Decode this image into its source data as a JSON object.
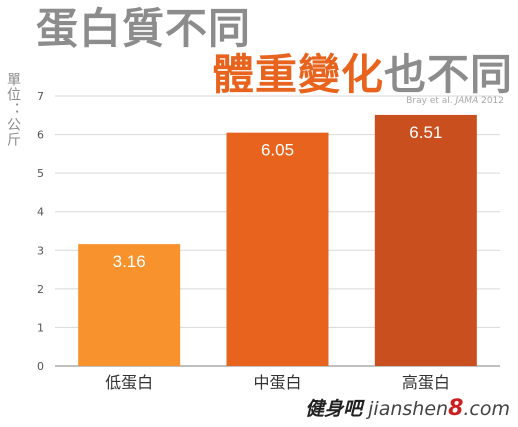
{
  "title": {
    "line1": "蛋白質不同",
    "line2_highlight": "體重變化",
    "line2_rest": "也不同"
  },
  "unit_label": "單位：公斤",
  "source": {
    "prefix": "Bray et al. ",
    "journal": "JAMA",
    "year": " 2012"
  },
  "watermark": {
    "logo": "健身吧",
    "domain_a": "jianshen",
    "domain_num": "8",
    "domain_b": ".com"
  },
  "colors": {
    "bar1": "#f7922d",
    "bar2": "#e8641e",
    "bar3": "#c9501e",
    "title_grey": "#8c8c8c",
    "title_orange": "#e8641e"
  },
  "chart_data": {
    "type": "bar",
    "categories": [
      "低蛋白",
      "中蛋白",
      "高蛋白"
    ],
    "values": [
      3.16,
      6.05,
      6.51
    ],
    "value_labels": [
      "3.16",
      "6.05",
      "6.51"
    ],
    "ylim": [
      0,
      7
    ],
    "yticks": [
      0,
      1,
      2,
      3,
      4,
      5,
      6,
      7
    ],
    "grid": true,
    "legend": "none"
  }
}
